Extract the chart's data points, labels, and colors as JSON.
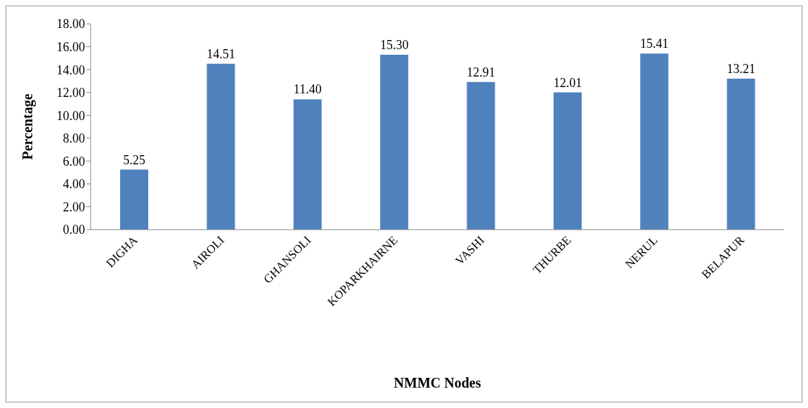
{
  "chart_data": {
    "type": "bar",
    "xlabel": "NMMC Nodes",
    "ylabel": "Percentage",
    "categories": [
      "DIGHA",
      "AIROLI",
      "GHANSOLI",
      "KOPARKHAIRNE",
      "VASHI",
      "THURBE",
      "NERUL",
      "BELAPUR"
    ],
    "values": [
      5.25,
      14.51,
      11.4,
      15.3,
      12.91,
      12.01,
      15.41,
      13.21
    ],
    "value_labels": [
      "5.25",
      "14.51",
      "11.40",
      "15.30",
      "12.91",
      "12.01",
      "15.41",
      "13.21"
    ],
    "color": "#4f81bd",
    "ylim": [
      0,
      18
    ],
    "yticks": [
      {
        "value": 0,
        "label": "0.00"
      },
      {
        "value": 2,
        "label": "2.00"
      },
      {
        "value": 4,
        "label": "4.00"
      },
      {
        "value": 6,
        "label": "6.00"
      },
      {
        "value": 8,
        "label": "8.00"
      },
      {
        "value": 10,
        "label": "10.00"
      },
      {
        "value": 12,
        "label": "12.00"
      },
      {
        "value": 14,
        "label": "14.00"
      },
      {
        "value": 16,
        "label": "16.00"
      },
      {
        "value": 18,
        "label": "18.00"
      }
    ],
    "grid": false,
    "legend": false
  }
}
